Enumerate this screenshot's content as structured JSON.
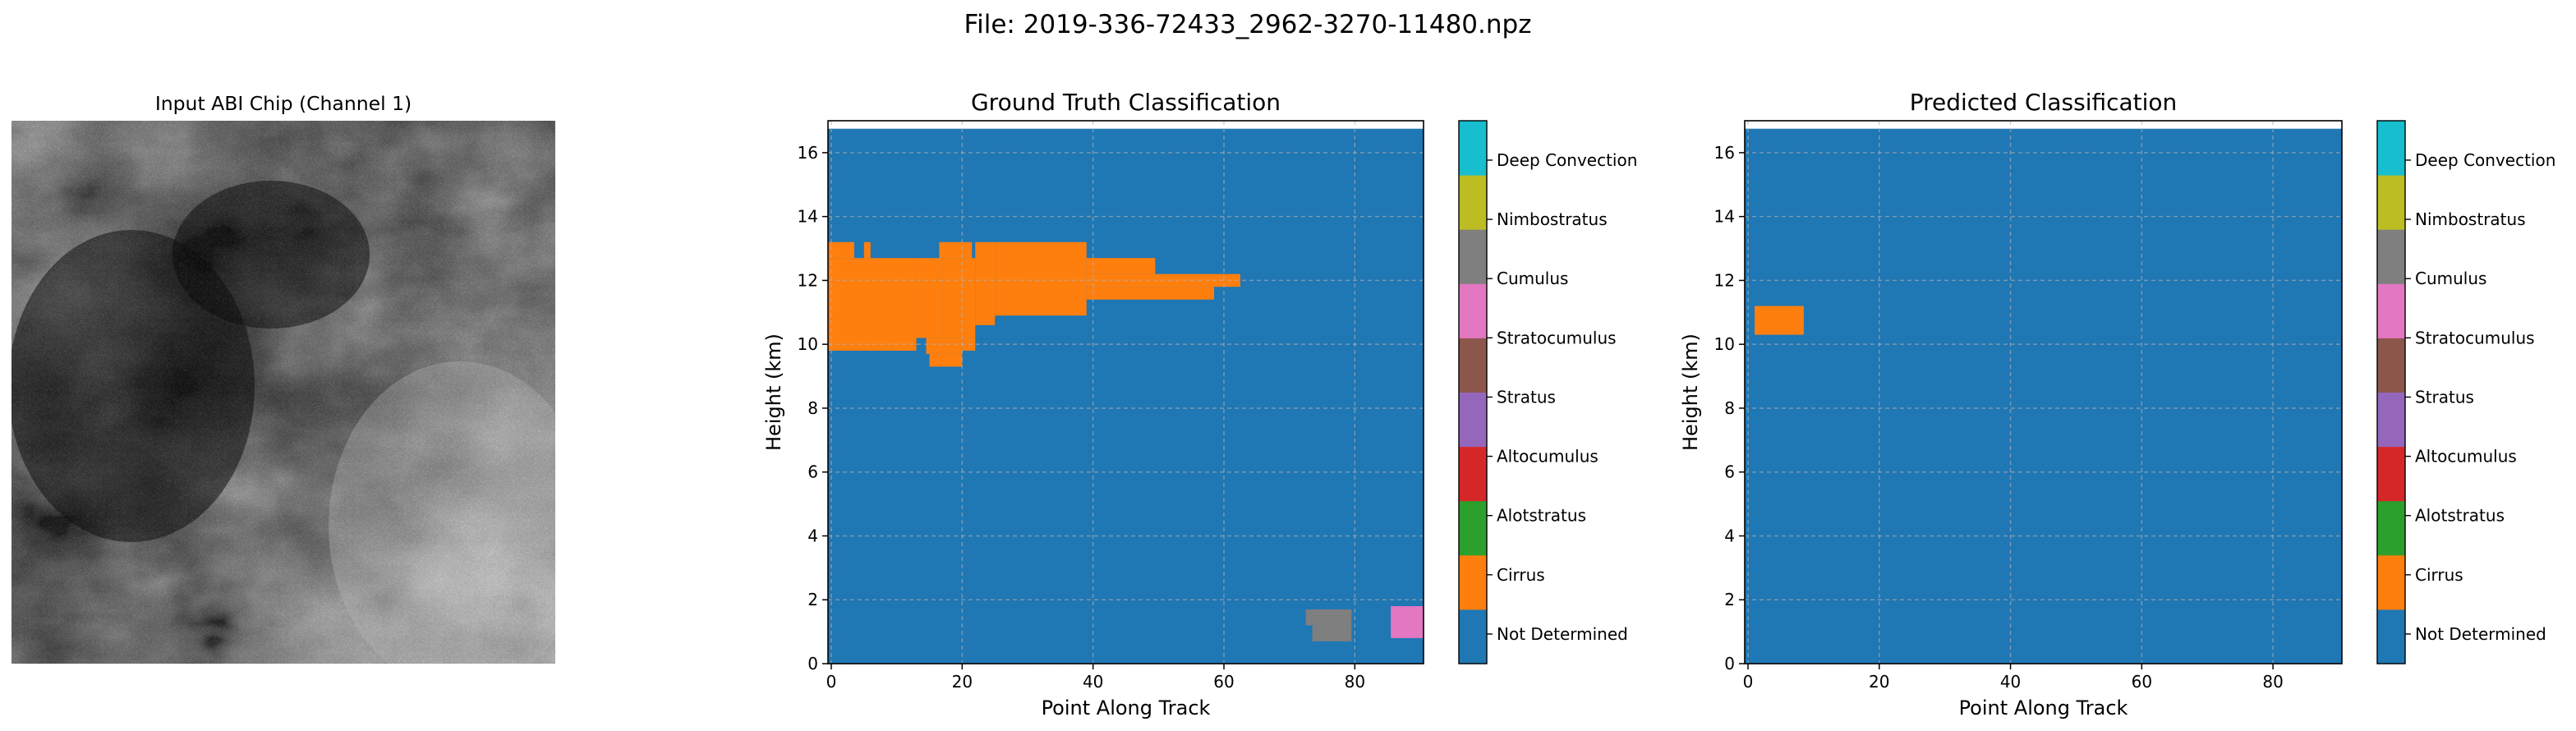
{
  "figure": {
    "suptitle": "File: 2019-336-72433_2962-3270-11480.npz"
  },
  "image_panel": {
    "title": "Input ABI Chip (Channel 1)",
    "image": "grayscale satellite cloud image"
  },
  "classes": {
    "names": [
      "Not Determined",
      "Cirrus",
      "Alotstratus",
      "Altocumulus",
      "Stratus",
      "Stratocumulus",
      "Cumulus",
      "Nimbostratus",
      "Deep Convection"
    ],
    "colors": [
      "#1f77b4",
      "#ff7f0e",
      "#2ca02c",
      "#d62728",
      "#9467bd",
      "#8c564b",
      "#e377c2",
      "#7f7f7f",
      "#bcbd22",
      "#17becf"
    ]
  },
  "chart_data": [
    {
      "type": "heatmap",
      "title": "Ground Truth Classification",
      "xlabel": "Point Along Track",
      "ylabel": "Height (km)",
      "xlim": [
        -0.5,
        90.5
      ],
      "ylim": [
        0,
        17
      ],
      "xticks": [
        0,
        20,
        40,
        60,
        80
      ],
      "yticks": [
        0,
        2,
        4,
        6,
        8,
        10,
        12,
        14,
        16
      ],
      "grid": true,
      "background_class": "Not Determined",
      "regions": [
        {
          "class": "Cirrus",
          "x_range": [
            -0.5,
            13
          ],
          "y_range": [
            9.8,
            12.7
          ]
        },
        {
          "class": "Cirrus",
          "x_range": [
            -0.5,
            3.5
          ],
          "y_range": [
            12.7,
            13.2
          ]
        },
        {
          "class": "Cirrus",
          "x_range": [
            5,
            6
          ],
          "y_range": [
            12.7,
            13.2
          ]
        },
        {
          "class": "Cirrus",
          "x_range": [
            13,
            17
          ],
          "y_range": [
            10.2,
            12.7
          ]
        },
        {
          "class": "Cirrus",
          "x_range": [
            14.5,
            20
          ],
          "y_range": [
            9.7,
            10.2
          ]
        },
        {
          "class": "Cirrus",
          "x_range": [
            15,
            20
          ],
          "y_range": [
            9.3,
            9.7
          ]
        },
        {
          "class": "Cirrus",
          "x_range": [
            16.5,
            21.5
          ],
          "y_range": [
            12.7,
            13.2
          ]
        },
        {
          "class": "Cirrus",
          "x_range": [
            17,
            22
          ],
          "y_range": [
            10.2,
            12.7
          ]
        },
        {
          "class": "Cirrus",
          "x_range": [
            20,
            22
          ],
          "y_range": [
            9.8,
            10.2
          ]
        },
        {
          "class": "Cirrus",
          "x_range": [
            22,
            25
          ],
          "y_range": [
            10.6,
            13.2
          ]
        },
        {
          "class": "Cirrus",
          "x_range": [
            25,
            39
          ],
          "y_range": [
            10.9,
            13.2
          ]
        },
        {
          "class": "Cirrus",
          "x_range": [
            39,
            49.5
          ],
          "y_range": [
            12.2,
            12.7
          ]
        },
        {
          "class": "Cirrus",
          "x_range": [
            39,
            58.5
          ],
          "y_range": [
            11.8,
            12.2
          ]
        },
        {
          "class": "Cirrus",
          "x_range": [
            58.5,
            62.5
          ],
          "y_range": [
            11.8,
            12.2
          ]
        },
        {
          "class": "Cirrus",
          "x_range": [
            39,
            58.5
          ],
          "y_range": [
            11.4,
            11.8
          ]
        },
        {
          "class": "Stratocumulus",
          "x_range": [
            72.5,
            79.5
          ],
          "y_range": [
            1.2,
            1.7
          ]
        },
        {
          "class": "Stratocumulus",
          "x_range": [
            73.5,
            79.5
          ],
          "y_range": [
            0.7,
            1.2
          ]
        },
        {
          "class": "Cumulus",
          "x_range": [
            85.5,
            90.5
          ],
          "y_range": [
            0.8,
            1.8
          ]
        }
      ]
    },
    {
      "type": "heatmap",
      "title": "Predicted Classification",
      "xlabel": "Point Along Track",
      "ylabel": "Height (km)",
      "xlim": [
        -0.5,
        90.5
      ],
      "ylim": [
        0,
        17
      ],
      "xticks": [
        0,
        20,
        40,
        60,
        80
      ],
      "yticks": [
        0,
        2,
        4,
        6,
        8,
        10,
        12,
        14,
        16
      ],
      "grid": true,
      "background_class": "Not Determined",
      "regions": [
        {
          "class": "Cirrus",
          "x_range": [
            1,
            8.5
          ],
          "y_range": [
            10.3,
            11.2
          ]
        }
      ]
    }
  ]
}
